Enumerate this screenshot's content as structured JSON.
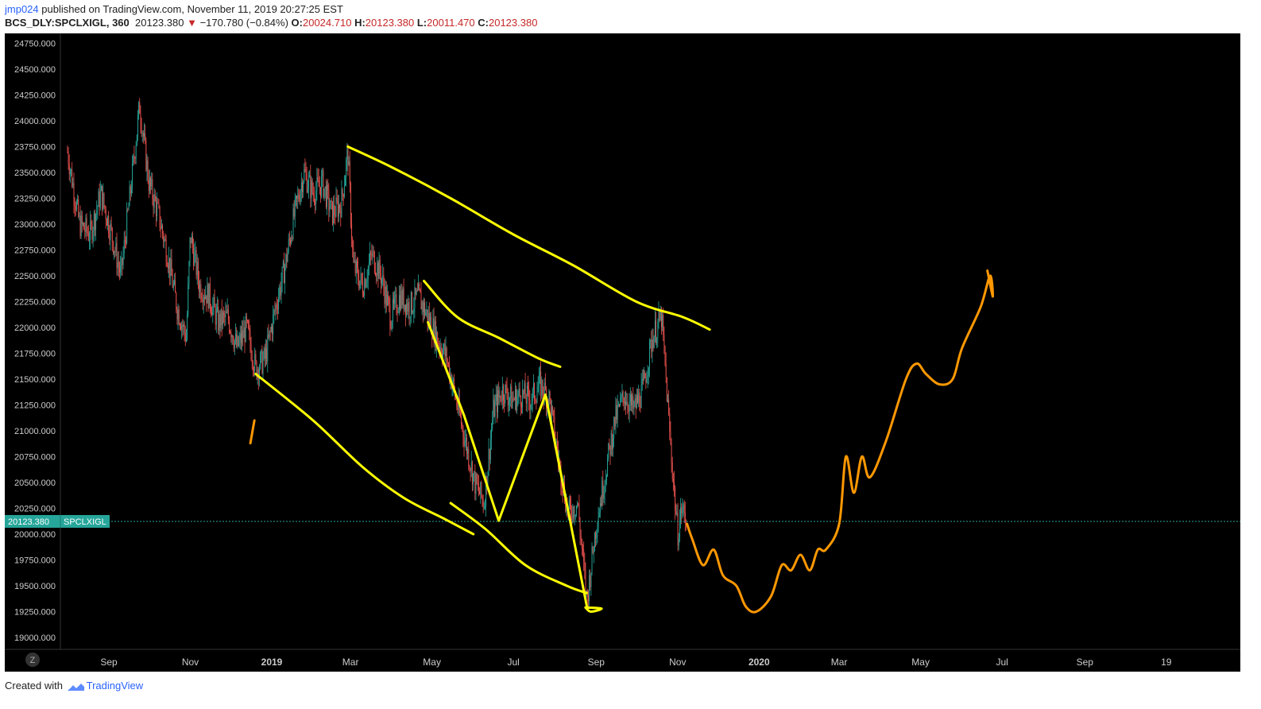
{
  "header": {
    "user": "jmp024",
    "published_text": "published on TradingView.com, November 11, 2019 20:27:25 EST",
    "symbol": "BCS_DLY:SPCLXIGL, 360",
    "last_price": "20123.380",
    "arrow": "▼",
    "change": "−170.780 (−0.84%)",
    "o_label": "O:",
    "o_value": "20024.710",
    "h_label": "H:",
    "h_value": "20123.380",
    "l_label": "L:",
    "l_value": "20011.470",
    "c_label": "C:",
    "c_value": "20123.380"
  },
  "price_badge": {
    "value": "20123.380",
    "symbol": "SPCLXIGL"
  },
  "footer": {
    "created_with": "Created with",
    "brand": "TradingView"
  },
  "z_button": "Z",
  "colors": {
    "background": "#000000",
    "up_candle": "#26a69a",
    "down_candle": "#ef5350",
    "drawing_yellow": "#ffff00",
    "drawing_orange": "#ff9800",
    "price_line": "#26a69a"
  },
  "chart_data": {
    "type": "candlestick",
    "y_axis": {
      "range": [
        18900,
        24900
      ],
      "ticks": [
        "24750.000",
        "24500.000",
        "24250.000",
        "24000.000",
        "23750.000",
        "23500.000",
        "23250.000",
        "23000.000",
        "22750.000",
        "22500.000",
        "22250.000",
        "22000.000",
        "21750.000",
        "21500.000",
        "21250.000",
        "21000.000",
        "20750.000",
        "20500.000",
        "20250.000",
        "20000.000",
        "19750.000",
        "19500.000",
        "19250.000",
        "19000.000"
      ]
    },
    "x_axis": {
      "labels": [
        {
          "text": "Sep",
          "bold": false,
          "x": "2018-09"
        },
        {
          "text": "Nov",
          "bold": false,
          "x": "2018-11"
        },
        {
          "text": "2019",
          "bold": true,
          "x": "2019-01"
        },
        {
          "text": "Mar",
          "bold": false,
          "x": "2019-03"
        },
        {
          "text": "May",
          "bold": false,
          "x": "2019-05"
        },
        {
          "text": "Jul",
          "bold": false,
          "x": "2019-07"
        },
        {
          "text": "Sep",
          "bold": false,
          "x": "2019-09"
        },
        {
          "text": "Nov",
          "bold": false,
          "x": "2019-11"
        },
        {
          "text": "2020",
          "bold": true,
          "x": "2020-01"
        },
        {
          "text": "Mar",
          "bold": false,
          "x": "2020-03"
        },
        {
          "text": "May",
          "bold": false,
          "x": "2020-05"
        },
        {
          "text": "Jul",
          "bold": false,
          "x": "2020-07"
        },
        {
          "text": "Sep",
          "bold": false,
          "x": "2020-09"
        },
        {
          "text": "19",
          "bold": false,
          "x": "2020-11"
        }
      ]
    },
    "last_price": 20123.38,
    "price_path": [
      [
        "2018-08-01",
        23700
      ],
      [
        "2018-08-10",
        23000
      ],
      [
        "2018-08-18",
        22900
      ],
      [
        "2018-08-26",
        23300
      ],
      [
        "2018-09-03",
        22900
      ],
      [
        "2018-09-10",
        22500
      ],
      [
        "2018-09-17",
        23300
      ],
      [
        "2018-09-24",
        24150
      ],
      [
        "2018-10-01",
        23400
      ],
      [
        "2018-10-08",
        23100
      ],
      [
        "2018-10-15",
        22700
      ],
      [
        "2018-10-22",
        22200
      ],
      [
        "2018-10-29",
        21900
      ],
      [
        "2018-11-01",
        22900
      ],
      [
        "2018-11-08",
        22400
      ],
      [
        "2018-11-15",
        22300
      ],
      [
        "2018-11-22",
        22050
      ],
      [
        "2018-11-29",
        22100
      ],
      [
        "2018-12-06",
        21800
      ],
      [
        "2018-12-13",
        22000
      ],
      [
        "2018-12-20",
        21600
      ],
      [
        "2018-12-27",
        21700
      ],
      [
        "2019-01-04",
        22200
      ],
      [
        "2019-01-11",
        22600
      ],
      [
        "2019-01-18",
        23100
      ],
      [
        "2019-01-25",
        23500
      ],
      [
        "2019-02-01",
        23300
      ],
      [
        "2019-02-08",
        23400
      ],
      [
        "2019-02-15",
        23100
      ],
      [
        "2019-02-22",
        23200
      ],
      [
        "2019-02-27",
        23700
      ],
      [
        "2019-03-03",
        22600
      ],
      [
        "2019-03-10",
        22400
      ],
      [
        "2019-03-17",
        22700
      ],
      [
        "2019-03-24",
        22500
      ],
      [
        "2019-03-31",
        22100
      ],
      [
        "2019-04-07",
        22300
      ],
      [
        "2019-04-14",
        22200
      ],
      [
        "2019-04-21",
        22300
      ],
      [
        "2019-04-28",
        22100
      ],
      [
        "2019-05-05",
        21900
      ],
      [
        "2019-05-12",
        21700
      ],
      [
        "2019-05-19",
        21300
      ],
      [
        "2019-05-26",
        20900
      ],
      [
        "2019-06-02",
        20500
      ],
      [
        "2019-06-09",
        20300
      ],
      [
        "2019-06-16",
        21200
      ],
      [
        "2019-06-23",
        21400
      ],
      [
        "2019-06-30",
        21300
      ],
      [
        "2019-07-07",
        21350
      ],
      [
        "2019-07-14",
        21300
      ],
      [
        "2019-07-21",
        21450
      ],
      [
        "2019-07-28",
        21300
      ],
      [
        "2019-08-04",
        20700
      ],
      [
        "2019-08-11",
        20200
      ],
      [
        "2019-08-18",
        20300
      ],
      [
        "2019-08-25",
        19350
      ],
      [
        "2019-09-01",
        20100
      ],
      [
        "2019-09-08",
        20600
      ],
      [
        "2019-09-15",
        21100
      ],
      [
        "2019-09-22",
        21350
      ],
      [
        "2019-09-29",
        21200
      ],
      [
        "2019-10-06",
        21400
      ],
      [
        "2019-10-13",
        21900
      ],
      [
        "2019-10-20",
        22100
      ],
      [
        "2019-10-27",
        20800
      ],
      [
        "2019-11-01",
        20000
      ],
      [
        "2019-11-04",
        20250
      ],
      [
        "2019-11-08",
        20123
      ]
    ],
    "drawings": {
      "yellow_upper": [
        [
          "2019-02-27",
          23750
        ],
        [
          "2019-04-01",
          23550
        ],
        [
          "2019-05-15",
          23250
        ],
        [
          "2019-07-01",
          22900
        ],
        [
          "2019-08-15",
          22600
        ],
        [
          "2019-10-01",
          22250
        ],
        [
          "2019-11-05",
          22100
        ],
        [
          "2019-11-25",
          21980
        ]
      ],
      "yellow_mid": [
        [
          "2019-04-25",
          22450
        ],
        [
          "2019-05-20",
          22100
        ],
        [
          "2019-06-20",
          21900
        ],
        [
          "2019-07-20",
          21700
        ],
        [
          "2019-08-05",
          21620
        ]
      ],
      "yellow_lower": [
        [
          "2018-12-20",
          21550
        ],
        [
          "2019-02-01",
          21100
        ],
        [
          "2019-03-10",
          20650
        ],
        [
          "2019-04-10",
          20350
        ],
        [
          "2019-05-10",
          20150
        ],
        [
          "2019-06-01",
          20000
        ]
      ],
      "yellow_lower2": [
        [
          "2019-05-15",
          20300
        ],
        [
          "2019-06-10",
          20050
        ],
        [
          "2019-07-10",
          19700
        ],
        [
          "2019-08-10",
          19500
        ],
        [
          "2019-08-25",
          19430
        ]
      ],
      "yellow_zigzag": [
        [
          "2019-04-28",
          22050
        ],
        [
          "2019-05-25",
          21150
        ],
        [
          "2019-06-20",
          20130
        ],
        [
          "2019-07-25",
          21350
        ],
        [
          "2019-08-25",
          19300
        ]
      ],
      "yellow_circle": [
        [
          "2019-08-24",
          19290
        ],
        [
          "2019-09-05",
          19280
        ],
        [
          "2019-08-28",
          19250
        ],
        [
          "2019-08-24",
          19290
        ]
      ],
      "orange_tick": [
        [
          "2018-12-16",
          20880
        ],
        [
          "2018-12-19",
          21100
        ]
      ],
      "orange_forecast": [
        [
          "2019-11-08",
          20100
        ],
        [
          "2019-11-12",
          19950
        ],
        [
          "2019-11-20",
          19700
        ],
        [
          "2019-11-28",
          19850
        ],
        [
          "2019-12-05",
          19600
        ],
        [
          "2019-12-15",
          19500
        ],
        [
          "2019-12-22",
          19300
        ],
        [
          "2019-12-30",
          19250
        ],
        [
          "2020-01-10",
          19400
        ],
        [
          "2020-01-18",
          19700
        ],
        [
          "2020-01-25",
          19650
        ],
        [
          "2020-02-01",
          19800
        ],
        [
          "2020-02-08",
          19650
        ],
        [
          "2020-02-14",
          19850
        ],
        [
          "2020-02-20",
          19850
        ],
        [
          "2020-03-01",
          20100
        ],
        [
          "2020-03-06",
          20750
        ],
        [
          "2020-03-12",
          20400
        ],
        [
          "2020-03-18",
          20750
        ],
        [
          "2020-03-24",
          20550
        ],
        [
          "2020-04-05",
          20900
        ],
        [
          "2020-04-20",
          21500
        ],
        [
          "2020-04-28",
          21650
        ],
        [
          "2020-05-05",
          21550
        ],
        [
          "2020-05-15",
          21450
        ],
        [
          "2020-05-25",
          21500
        ],
        [
          "2020-06-01",
          21800
        ],
        [
          "2020-06-15",
          22200
        ],
        [
          "2020-06-22",
          22500
        ],
        [
          "2020-06-24",
          22300
        ],
        [
          "2020-06-20",
          22550
        ]
      ]
    }
  }
}
